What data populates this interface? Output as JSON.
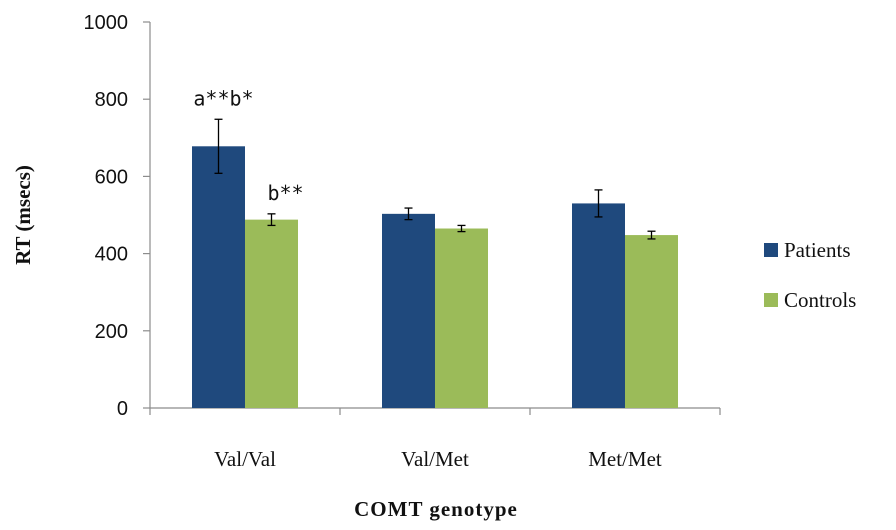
{
  "chart_data": {
    "type": "bar",
    "xlabel": "COMT genotype",
    "ylabel": "RT (msecs)",
    "ylim": [
      0,
      1000
    ],
    "yticks": [
      0,
      200,
      400,
      600,
      800,
      1000
    ],
    "grid": false,
    "legend_position": "right",
    "categories": [
      "Val/Val",
      "Val/Met",
      "Met/Met"
    ],
    "series": [
      {
        "name": "Patients",
        "color": "#1F497D",
        "values": [
          678,
          503,
          530
        ],
        "errors": [
          70,
          15,
          35
        ]
      },
      {
        "name": "Controls",
        "color": "#9BBB59",
        "values": [
          488,
          465,
          448
        ],
        "errors": [
          15,
          8,
          10
        ]
      }
    ],
    "annotations": [
      {
        "text": "a**b*",
        "category": 0,
        "series": 0
      },
      {
        "text": "b**",
        "category": 0,
        "series": 1
      }
    ]
  }
}
